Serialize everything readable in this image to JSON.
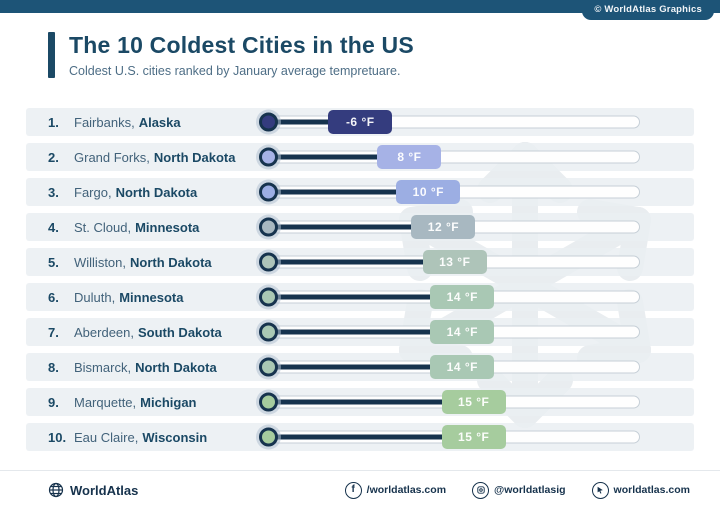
{
  "top_bar": {
    "credit": "© WorldAtlas Graphics"
  },
  "header": {
    "title": "The 10 Coldest Cities in the US",
    "subtitle": "Coldest U.S. cities ranked by January average tempretuare."
  },
  "colors": {
    "top_bar": "#1d5477",
    "title_navy": "#1b4965",
    "thermo_line": "#16334e",
    "row_band": "#eaeef2",
    "track_border": "#c6cfd7"
  },
  "chart_data": {
    "type": "bar",
    "title": "The 10 Coldest Cities in the US",
    "subtitle": "Coldest U.S. cities ranked by January average tempretuare.",
    "unit": "°F",
    "categories": [
      "Fairbanks, Alaska",
      "Grand Forks, North Dakota",
      "Fargo, North Dakota",
      "St. Cloud, Minnesota",
      "Williston, North Dakota",
      "Duluth, Minnesota",
      "Aberdeen, South Dakota",
      "Bismarck, North Dakota",
      "Marquette, Michigan",
      "Eau Claire, Wisconsin"
    ],
    "values": [
      -6,
      8,
      10,
      12,
      13,
      14,
      14,
      14,
      15,
      15
    ],
    "value_labels": [
      "-6 °F",
      "8 °F",
      "10 °F",
      "12 °F",
      "13 °F",
      "14 °F",
      "14 °F",
      "14 °F",
      "15 °F",
      "15 °F"
    ]
  },
  "rows": [
    {
      "rank": "1.",
      "city": "Fairbanks,",
      "state": "Alaska",
      "label": "-6 °F",
      "color": "#343c7e",
      "pct": 26
    },
    {
      "rank": "2.",
      "city": "Grand Forks,",
      "state": "North Dakota",
      "label": "8 °F",
      "color": "#a6b2e6",
      "pct": 39
    },
    {
      "rank": "3.",
      "city": "Fargo,",
      "state": "North Dakota",
      "label": "10 °F",
      "color": "#9caee3",
      "pct": 44
    },
    {
      "rank": "4.",
      "city": "St. Cloud,",
      "state": "Minnesota",
      "label": "12 °F",
      "color": "#a8b8c1",
      "pct": 48
    },
    {
      "rank": "5.",
      "city": "Williston,",
      "state": "North Dakota",
      "label": "13 °F",
      "color": "#aec4b9",
      "pct": 51
    },
    {
      "rank": "6.",
      "city": "Duluth,",
      "state": "Minnesota",
      "label": "14 °F",
      "color": "#a9c8b4",
      "pct": 53
    },
    {
      "rank": "7.",
      "city": "Aberdeen,",
      "state": "South Dakota",
      "label": "14 °F",
      "color": "#a9c8b4",
      "pct": 53
    },
    {
      "rank": "8.",
      "city": "Bismarck,",
      "state": "North Dakota",
      "label": "14 °F",
      "color": "#a9c8b4",
      "pct": 53
    },
    {
      "rank": "9.",
      "city": "Marquette,",
      "state": "Michigan",
      "label": "15 °F",
      "color": "#a6cc9e",
      "pct": 56
    },
    {
      "rank": "10.",
      "city": "Eau Claire,",
      "state": "Wisconsin",
      "label": "15 °F",
      "color": "#a6cc9e",
      "pct": 56
    }
  ],
  "footer": {
    "brand": "WorldAtlas",
    "links": [
      {
        "icon": "facebook-icon",
        "label": "/worldatlas.com"
      },
      {
        "icon": "instagram-icon",
        "label": "@worldatlasig"
      },
      {
        "icon": "cursor-icon",
        "label": "worldatlas.com"
      }
    ]
  }
}
